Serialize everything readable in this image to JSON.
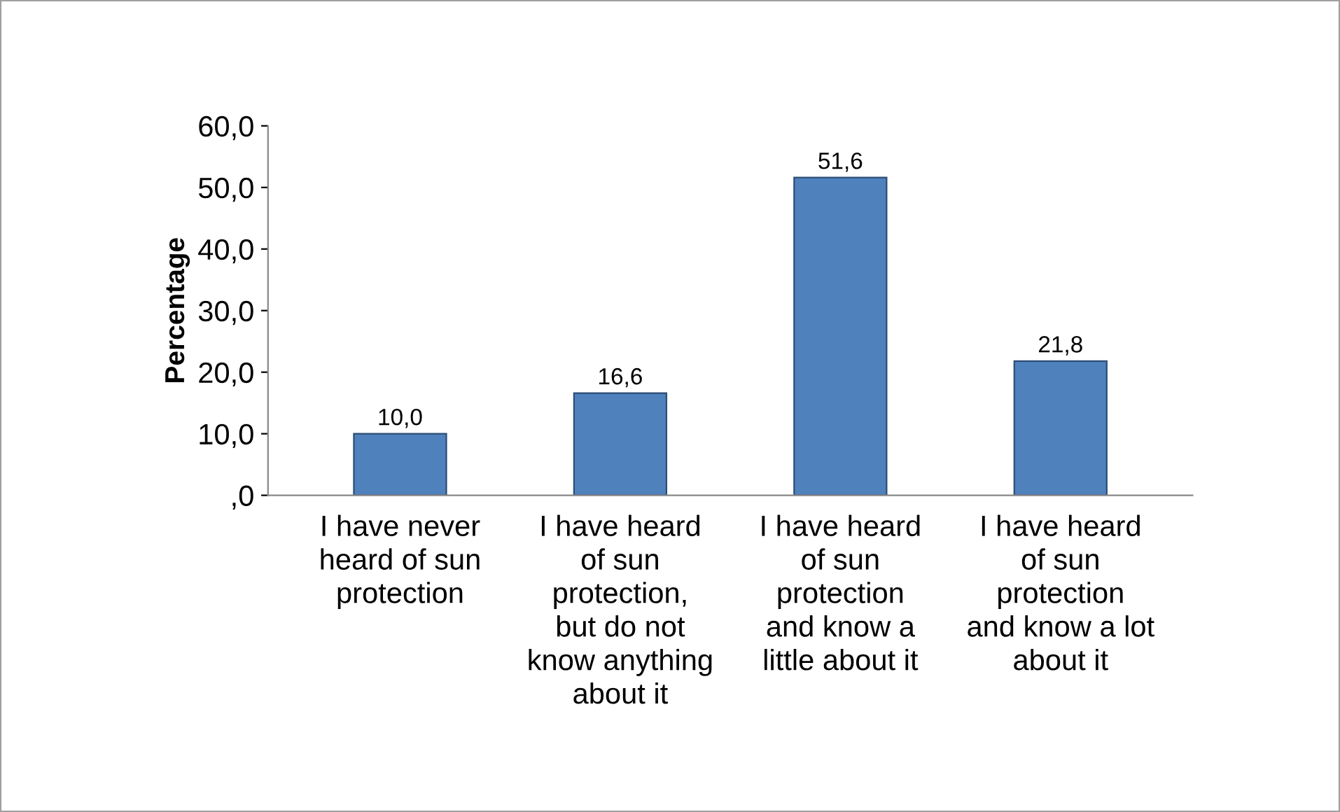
{
  "chart_data": {
    "type": "bar",
    "categories": [
      "I have never\nheard of sun\nprotection",
      "I have heard\nof sun\nprotection,\nbut do not\nknow anything\nabout it",
      "I have heard\nof sun\nprotection\nand know a\nlittle about it",
      "I have heard\nof sun\nprotection\nand know a lot\nabout it"
    ],
    "values": [
      10.0,
      16.6,
      51.6,
      21.8
    ],
    "value_labels": [
      "10,0",
      "16,6",
      "51,6",
      "21,8"
    ],
    "color": "#4f81bd",
    "ylabel": "Percentage",
    "ylim": [
      0,
      60
    ],
    "yticks": [
      {
        "value": 0,
        "label": ",0"
      },
      {
        "value": 10,
        "label": "10,0"
      },
      {
        "value": 20,
        "label": "20,0"
      },
      {
        "value": 30,
        "label": "30,0"
      },
      {
        "value": 40,
        "label": "40,0"
      },
      {
        "value": 50,
        "label": "50,0"
      },
      {
        "value": 60,
        "label": "60,0"
      }
    ],
    "grid": false,
    "legend": false
  }
}
